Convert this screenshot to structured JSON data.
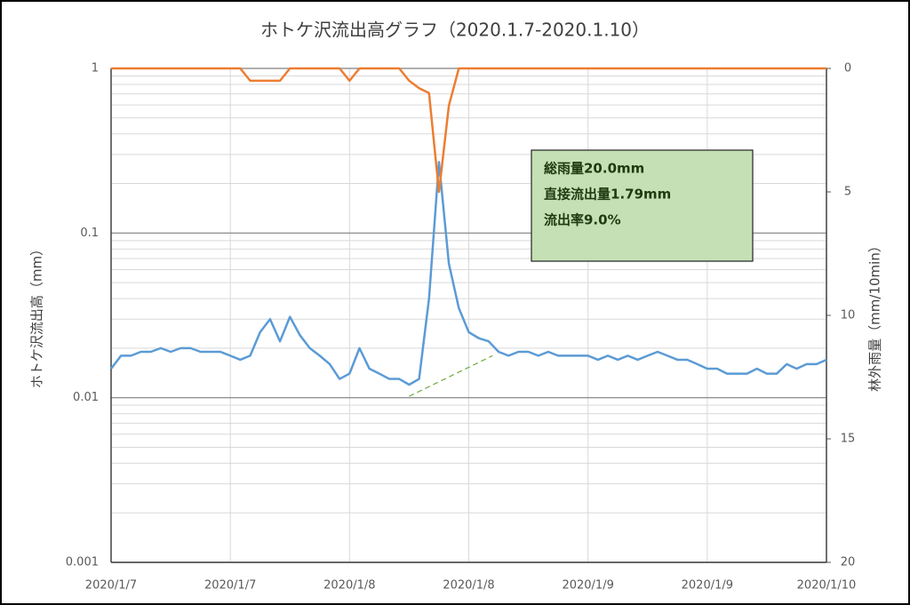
{
  "chart_data": {
    "type": "line",
    "title": "ホトケ沢流出高グラフ（2020.1.7-2020.1.10）",
    "y_label": "ホトケ沢流出高（mm）",
    "y2_label": "林外雨量（mm/10min）",
    "x": [
      0,
      1,
      2,
      3,
      4,
      5,
      6,
      7,
      8,
      9,
      10,
      11,
      12,
      13,
      14,
      15,
      16,
      17,
      18,
      19,
      20,
      21,
      22,
      23,
      24,
      25,
      26,
      27,
      28,
      29,
      30,
      31,
      32,
      33,
      34,
      35,
      36,
      37,
      38,
      39,
      40,
      41,
      42,
      43,
      44,
      45,
      46,
      47,
      48,
      49,
      50,
      51,
      52,
      53,
      54,
      55,
      56,
      57,
      58,
      59,
      60,
      61,
      62,
      63,
      64,
      65,
      66,
      67,
      68,
      69,
      70,
      71,
      72
    ],
    "xlim": [
      0,
      72
    ],
    "xticks": [
      {
        "value": 0,
        "label": "2020/1/7"
      },
      {
        "value": 12,
        "label": "2020/1/7"
      },
      {
        "value": 24,
        "label": "2020/1/8"
      },
      {
        "value": 36,
        "label": "2020/1/8"
      },
      {
        "value": 48,
        "label": "2020/1/9"
      },
      {
        "value": 60,
        "label": "2020/1/9"
      },
      {
        "value": 72,
        "label": "2020/1/10"
      }
    ],
    "ylim": [
      0.001,
      1
    ],
    "yticks": [
      0.001,
      0.01,
      0.1,
      1
    ],
    "y_log": true,
    "minor_grid": true,
    "y2lim": [
      0,
      20
    ],
    "y2ticks": [
      0,
      5,
      10,
      15,
      20
    ],
    "y2_reversed": true,
    "grid": true,
    "series": [
      {
        "name": "ホトケ沢流出高",
        "color": "#5b9bd5",
        "values": [
          0.015,
          0.018,
          0.018,
          0.019,
          0.019,
          0.02,
          0.019,
          0.02,
          0.02,
          0.019,
          0.019,
          0.019,
          0.018,
          0.017,
          0.018,
          0.025,
          0.03,
          0.022,
          0.031,
          0.024,
          0.02,
          0.018,
          0.016,
          0.013,
          0.014,
          0.02,
          0.015,
          0.014,
          0.013,
          0.013,
          0.012,
          0.013,
          0.04,
          0.27,
          0.065,
          0.035,
          0.025,
          0.023,
          0.022,
          0.019,
          0.018,
          0.019,
          0.019,
          0.018,
          0.019,
          0.018,
          0.018,
          0.018,
          0.018,
          0.017,
          0.018,
          0.017,
          0.018,
          0.017,
          0.018,
          0.019,
          0.018,
          0.017,
          0.017,
          0.016,
          0.015,
          0.015,
          0.014,
          0.014,
          0.014,
          0.015,
          0.014,
          0.014,
          0.016,
          0.015,
          0.016,
          0.016,
          0.017
        ]
      },
      {
        "name": "林外雨量",
        "color": "#ed7d31",
        "axis": "y2",
        "values": [
          0,
          0,
          0,
          0,
          0,
          0,
          0,
          0,
          0,
          0,
          0,
          0,
          0,
          0,
          0.5,
          0.5,
          0.5,
          0.5,
          0,
          0,
          0,
          0,
          0,
          0,
          0.5,
          0,
          0,
          0,
          0,
          0,
          0.5,
          0.8,
          1.0,
          5.0,
          1.5,
          0,
          0,
          0,
          0,
          0,
          0,
          0,
          0,
          0,
          0,
          0,
          0,
          0,
          0,
          0,
          0,
          0,
          0,
          0,
          0,
          0,
          0,
          0,
          0,
          0,
          0,
          0,
          0,
          0,
          0,
          0,
          0,
          0,
          0,
          0,
          0,
          0,
          0
        ]
      }
    ],
    "separation_line": {
      "color": "#70ad47",
      "x": [
        30,
        38.4
      ],
      "values": [
        0.0102,
        0.018
      ]
    },
    "annotations": [
      "総雨量20.0mm",
      "直接流出量1.79mm",
      "流出率9.0%"
    ]
  }
}
